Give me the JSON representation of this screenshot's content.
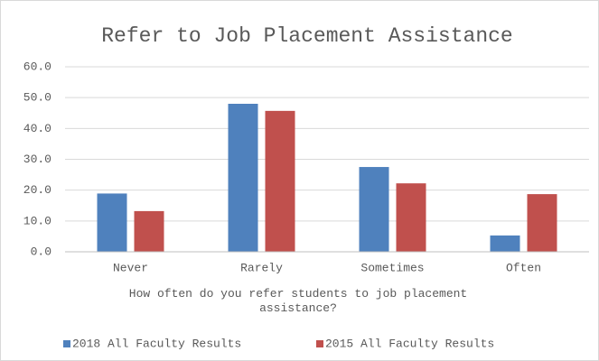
{
  "chart_data": {
    "type": "bar",
    "title": "Refer to Job Placement Assistance",
    "x_label": "How often do you refer students to job placement assistance?",
    "categories": [
      "Never",
      "Rarely",
      "Sometimes",
      "Often"
    ],
    "series": [
      {
        "name": "2018 All Faculty Results",
        "color": "#4f81bd",
        "values": [
          18.9,
          48.0,
          27.5,
          5.3
        ]
      },
      {
        "name": "2015 All Faculty  Results",
        "color": "#c0504d",
        "values": [
          13.2,
          45.7,
          22.2,
          18.7
        ]
      }
    ],
    "ylim": [
      0,
      60
    ],
    "yticks": [
      {
        "value": 0,
        "label": "0.0"
      },
      {
        "value": 10,
        "label": "10.0"
      },
      {
        "value": 20,
        "label": "20.0"
      },
      {
        "value": 30,
        "label": "30.0"
      },
      {
        "value": 40,
        "label": "40.0"
      },
      {
        "value": 50,
        "label": "50.0"
      },
      {
        "value": 60,
        "label": "60.0"
      }
    ],
    "grid": true,
    "legend": "bottom"
  }
}
